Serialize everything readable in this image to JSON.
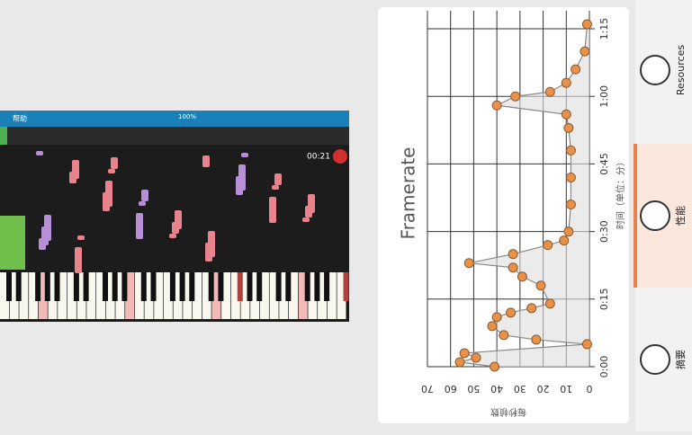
{
  "app": {
    "menu": "帮助",
    "zoom": "100%",
    "time": "00:21"
  },
  "chart_data": {
    "type": "line",
    "title": "Framerate",
    "x_label": "时间（单位：分）",
    "y_label": "每秒帧数",
    "x": [
      0,
      1,
      2,
      3,
      5,
      6,
      7,
      9,
      11,
      12,
      13,
      14,
      18,
      20,
      22,
      23,
      25,
      27,
      28,
      30,
      36,
      42,
      48,
      53,
      56,
      58,
      60,
      61,
      63,
      66,
      70,
      76
    ],
    "series": [
      {
        "name": "Framerate",
        "color": "#e8914a",
        "values": [
          41,
          56,
          49,
          54,
          1,
          23,
          37,
          42,
          40,
          34,
          25,
          17,
          21,
          29,
          33,
          52,
          33,
          18,
          11,
          9,
          8,
          8,
          8,
          9,
          10,
          40,
          32,
          17,
          10,
          6,
          2,
          1
        ]
      }
    ],
    "xlim": [
      0,
      79
    ],
    "ylim": [
      0,
      70
    ],
    "xticks": [
      {
        "value": 0,
        "label": "0:00"
      },
      {
        "value": 15,
        "label": "0:15"
      },
      {
        "value": 30,
        "label": "0:30"
      },
      {
        "value": 45,
        "label": "0:45"
      },
      {
        "value": 60,
        "label": "1:00"
      },
      {
        "value": 75,
        "label": "1:15"
      }
    ],
    "yticks": [
      0,
      10,
      20,
      30,
      40,
      50,
      60,
      70
    ],
    "grid": true
  },
  "tabs": [
    "Resources",
    "性能",
    "摘要"
  ]
}
